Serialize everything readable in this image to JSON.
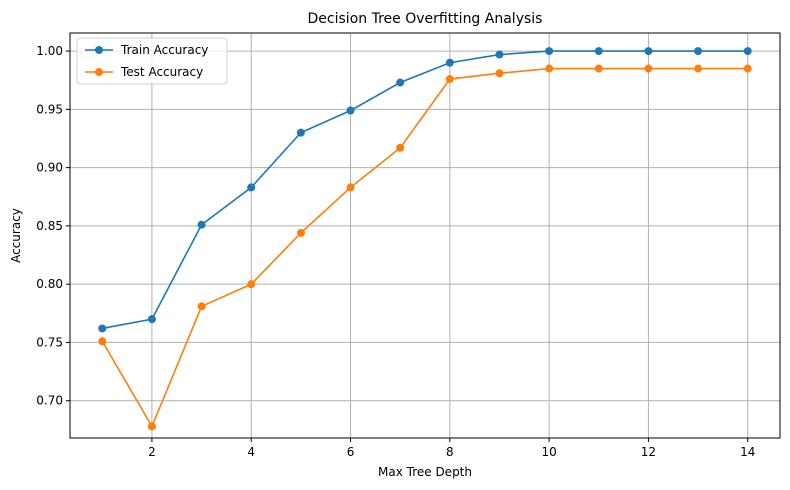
{
  "chart_data": {
    "type": "line",
    "title": "Decision Tree Overfitting Analysis",
    "xlabel": "Max Tree Depth",
    "ylabel": "Accuracy",
    "x": [
      1,
      2,
      3,
      4,
      5,
      6,
      7,
      8,
      9,
      10,
      11,
      12,
      13,
      14
    ],
    "xlim": [
      0.35,
      14.65
    ],
    "ylim": [
      0.668,
      1.0155
    ],
    "xticks": [
      2,
      4,
      6,
      8,
      10,
      12,
      14
    ],
    "xtick_labels": [
      "2",
      "4",
      "6",
      "8",
      "10",
      "12",
      "14"
    ],
    "yticks": [
      0.7,
      0.75,
      0.8,
      0.85,
      0.9,
      0.95,
      1.0
    ],
    "ytick_labels": [
      "0.70",
      "0.75",
      "0.80",
      "0.85",
      "0.90",
      "0.95",
      "1.00"
    ],
    "grid": true,
    "legend_position": "top-left",
    "series": [
      {
        "name": "Train Accuracy",
        "color": "#1f77b4",
        "marker": "circle",
        "values": [
          0.762,
          0.77,
          0.851,
          0.883,
          0.93,
          0.949,
          0.973,
          0.99,
          0.997,
          1.0,
          1.0,
          1.0,
          1.0,
          1.0
        ]
      },
      {
        "name": "Test Accuracy",
        "color": "#ff7f0e",
        "marker": "circle",
        "values": [
          0.751,
          0.678,
          0.781,
          0.8,
          0.844,
          0.883,
          0.917,
          0.976,
          0.981,
          0.985,
          0.985,
          0.985,
          0.985,
          0.985
        ]
      }
    ]
  }
}
